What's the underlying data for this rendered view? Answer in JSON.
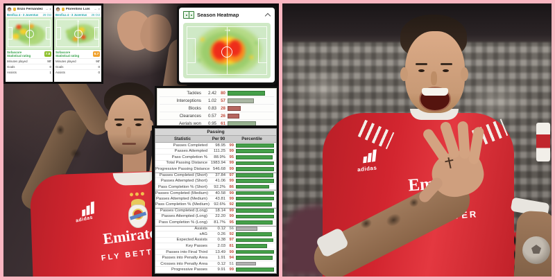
{
  "frame": {
    "border_color": "#f9b6c1"
  },
  "icons": {
    "direction_arrow": "→",
    "minimize": "–",
    "close": "×"
  },
  "comparison_widget": {
    "controls": {
      "minimize": "–",
      "close": "×"
    },
    "labels": {
      "rating_line1": "Sofascore",
      "rating_line2": "Statistical rating",
      "minutes": "Minutes played",
      "goals": "Goals",
      "assists": "Assists"
    },
    "players": [
      {
        "name": "Enzo Fernández",
        "match": "Benfica 4 - 3 Juventus",
        "date": "26 Oct",
        "rating": "7.8",
        "rating_color": "#8ec02c",
        "minutes": "90'",
        "goals": "0",
        "assists": "1"
      },
      {
        "name": "Florentino Luís",
        "match": "Benfica 4 - 3 Juventus",
        "date": "26 Oct",
        "rating": "6.7",
        "rating_color": "#f0a22e",
        "minutes": "90'",
        "goals": "0",
        "assists": "0"
      }
    ]
  },
  "heatmap_card": {
    "title": "Season Heatmap"
  },
  "defense_panel": {
    "rows": [
      {
        "stat": "Tackles",
        "per90": "2.42",
        "percentile": 80,
        "bar_color": "#45a049",
        "num_color": "#c04a3a"
      },
      {
        "stat": "Interceptions",
        "per90": "1.02",
        "percentile": 57,
        "bar_color": "#a9b6a2",
        "num_color": "#c04a3a"
      },
      {
        "stat": "Blocks",
        "per90": "0.83",
        "percentile": 28,
        "bar_color": "#b5655e",
        "num_color": "#c04a3a"
      },
      {
        "stat": "Clearances",
        "per90": "0.57",
        "percentile": 26,
        "bar_color": "#b5655e",
        "num_color": "#c04a3a"
      },
      {
        "stat": "Aerials won",
        "per90": "0.95",
        "percentile": 61,
        "bar_color": "#96b18f",
        "num_color": "#c04a3a"
      }
    ]
  },
  "passing_table": {
    "title": "Passing",
    "columns": {
      "stat": "Statistic",
      "per90": "Per 90",
      "percentile": "Percentile"
    },
    "rows": [
      {
        "stat": "Passes Completed",
        "per90": "98.95",
        "percentile": 99,
        "bar_color": "#45a049",
        "num_color": "#c04a3a"
      },
      {
        "stat": "Passes Attempted",
        "per90": "111.25",
        "percentile": 99,
        "bar_color": "#45a049",
        "num_color": "#c04a3a"
      },
      {
        "stat": "Pass Completion %",
        "per90": "88.9%",
        "percentile": 95,
        "bar_color": "#45a049",
        "num_color": "#c04a3a"
      },
      {
        "stat": "Total Passing Distance",
        "per90": "1983.94",
        "percentile": 99,
        "bar_color": "#45a049",
        "num_color": "#c04a3a"
      },
      {
        "stat": "Progressive Passing Distance",
        "per90": "546.68",
        "percentile": 99,
        "bar_color": "#45a049",
        "num_color": "#c04a3a"
      },
      {
        "stat": "Passes Completed (Short)",
        "per90": "37.84",
        "percentile": 97,
        "bar_color": "#45a049",
        "num_color": "#c04a3a"
      },
      {
        "stat": "Passes Attempted (Short)",
        "per90": "41.06",
        "percentile": 99,
        "bar_color": "#45a049",
        "num_color": "#c04a3a"
      },
      {
        "stat": "Pass Completion % (Short)",
        "per90": "92.2%",
        "percentile": 86,
        "bar_color": "#45a049",
        "num_color": "#c04a3a"
      },
      {
        "stat": "Passes Completed (Medium)",
        "per90": "40.58",
        "percentile": 99,
        "bar_color": "#45a049",
        "num_color": "#c04a3a"
      },
      {
        "stat": "Passes Attempted (Medium)",
        "per90": "43.81",
        "percentile": 99,
        "bar_color": "#45a049",
        "num_color": "#c04a3a"
      },
      {
        "stat": "Pass Completion % (Medium)",
        "per90": "92.6%",
        "percentile": 92,
        "bar_color": "#45a049",
        "num_color": "#c04a3a"
      },
      {
        "stat": "Passes Completed (Long)",
        "per90": "18.14",
        "percentile": 99,
        "bar_color": "#45a049",
        "num_color": "#c04a3a"
      },
      {
        "stat": "Passes Attempted (Long)",
        "per90": "22.20",
        "percentile": 99,
        "bar_color": "#45a049",
        "num_color": "#c04a3a"
      },
      {
        "stat": "Pass Completion % (Long)",
        "per90": "81.7%",
        "percentile": 95,
        "bar_color": "#45a049",
        "num_color": "#c04a3a"
      },
      {
        "stat": "Assists",
        "per90": "0.12",
        "percentile": 56,
        "bar_color": "#b2b2b2",
        "num_color": "#8e8e8e"
      },
      {
        "stat": "xAG",
        "per90": "0.26",
        "percentile": 92,
        "bar_color": "#45a049",
        "num_color": "#c04a3a"
      },
      {
        "stat": "Expected Assists",
        "per90": "0.38",
        "percentile": 97,
        "bar_color": "#45a049",
        "num_color": "#c04a3a"
      },
      {
        "stat": "Key Passes",
        "per90": "2.03",
        "percentile": 81,
        "bar_color": "#45a049",
        "num_color": "#c04a3a"
      },
      {
        "stat": "Passes into Final Third",
        "per90": "13.49",
        "percentile": 99,
        "bar_color": "#45a049",
        "num_color": "#c04a3a"
      },
      {
        "stat": "Passes into Penalty Area",
        "per90": "1.91",
        "percentile": 94,
        "bar_color": "#45a049",
        "num_color": "#c04a3a"
      },
      {
        "stat": "Crosses into Penalty Area",
        "per90": "0.12",
        "percentile": 51,
        "bar_color": "#b2b2b2",
        "num_color": "#8e8e8e"
      },
      {
        "stat": "Progressive Passes",
        "per90": "9.91",
        "percentile": 99,
        "bar_color": "#45a049",
        "num_color": "#c04a3a"
      }
    ]
  },
  "left_photo": {
    "sponsor_line1": "Emirates",
    "sponsor_line2": "FLY BETTER",
    "brand": "adidas"
  },
  "right_photo": {
    "sponsor_line1": "Emirates",
    "sponsor_line2": "FLY BETTER",
    "brand": "adidas"
  }
}
